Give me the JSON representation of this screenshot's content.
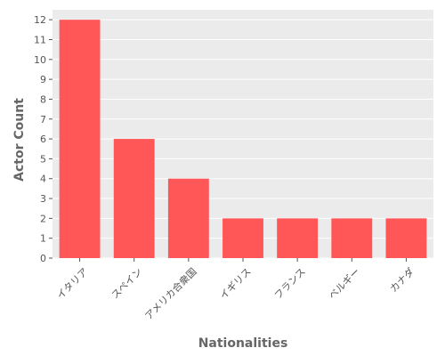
{
  "colors": {
    "panel_background": "#ebebeb",
    "grid_line": "#ffffff",
    "bar_fill": "#ff5757",
    "text": "#555555"
  },
  "chart_data": {
    "type": "bar",
    "title": "",
    "xlabel": "Nationalities",
    "ylabel": "Actor Count",
    "categories": [
      "イタリア",
      "スペイン",
      "アメリカ合衆国",
      "イギリス",
      "フランス",
      "ベルギー",
      "カナダ"
    ],
    "values": [
      12,
      6,
      4,
      2,
      2,
      2,
      2
    ],
    "ylim": [
      0,
      12.5
    ],
    "yticks": [
      0,
      1,
      2,
      3,
      4,
      5,
      6,
      7,
      8,
      9,
      10,
      11,
      12
    ],
    "grid": true,
    "legend": "none"
  }
}
